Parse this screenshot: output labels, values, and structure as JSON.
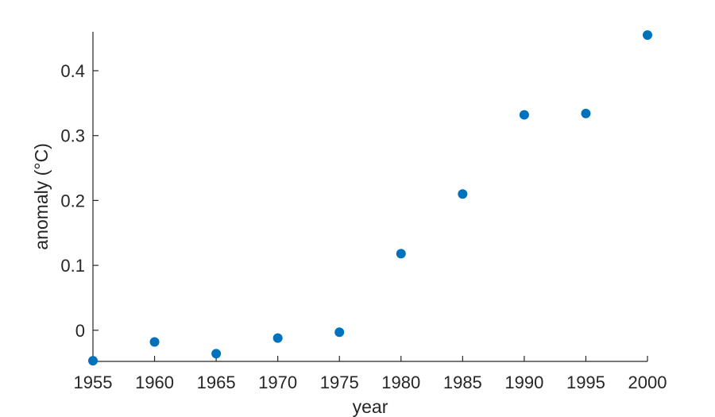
{
  "chart_data": {
    "type": "scatter",
    "xlabel": "year",
    "ylabel": "anomaly (°C)",
    "xlim": [
      1955,
      2000
    ],
    "ylim": [
      -0.048,
      0.46
    ],
    "xticks": [
      1955,
      1960,
      1965,
      1970,
      1975,
      1980,
      1985,
      1990,
      1995,
      2000
    ],
    "yticks": [
      0,
      0.1,
      0.2,
      0.3,
      0.4
    ],
    "grid": false,
    "color": "#0072BD",
    "series": [
      {
        "x": [
          1955,
          1960,
          1965,
          1970,
          1975,
          1980,
          1985,
          1990,
          1995,
          2000
        ],
        "y": [
          -0.047,
          -0.018,
          -0.036,
          -0.012,
          -0.003,
          0.118,
          0.21,
          0.332,
          0.334,
          0.455
        ]
      }
    ]
  }
}
